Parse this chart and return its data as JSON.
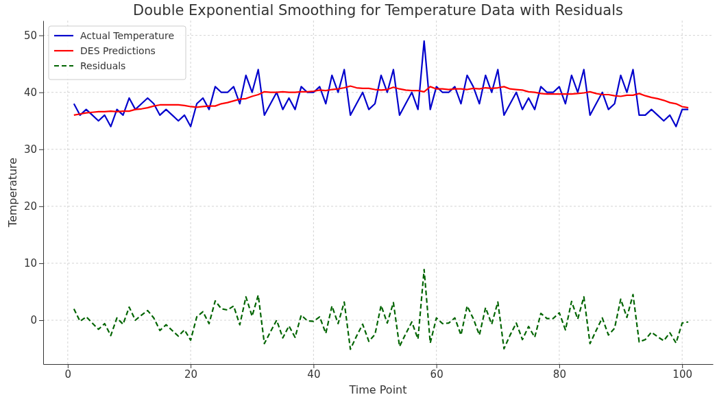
{
  "chart_data": {
    "type": "line",
    "title": "Double Exponential Smoothing for Temperature Data with Residuals",
    "xlabel": "Time Point",
    "ylabel": "Temperature",
    "x": [
      1,
      2,
      3,
      4,
      5,
      6,
      7,
      8,
      9,
      10,
      11,
      12,
      13,
      14,
      15,
      16,
      17,
      18,
      19,
      20,
      21,
      22,
      23,
      24,
      25,
      26,
      27,
      28,
      29,
      30,
      31,
      32,
      33,
      34,
      35,
      36,
      37,
      38,
      39,
      40,
      41,
      42,
      43,
      44,
      45,
      46,
      47,
      48,
      49,
      50,
      51,
      52,
      53,
      54,
      55,
      56,
      57,
      58,
      59,
      60,
      61,
      62,
      63,
      64,
      65,
      66,
      67,
      68,
      69,
      70,
      71,
      72,
      73,
      74,
      75,
      76,
      77,
      78,
      79,
      80,
      81,
      82,
      83,
      84,
      85,
      86,
      87,
      88,
      89,
      90,
      91,
      92,
      93,
      94,
      95,
      96,
      97,
      98,
      99,
      100,
      101
    ],
    "xlim": [
      -4,
      105
    ],
    "ylim": [
      -7.7,
      52.6
    ],
    "xticks": [
      0,
      20,
      40,
      60,
      80,
      100
    ],
    "yticks": [
      0,
      10,
      20,
      30,
      40,
      50
    ],
    "grid": true,
    "legend": "top left",
    "series": [
      {
        "name": "Actual Temperature",
        "color": "#0000cc",
        "line_style": "solid",
        "values": [
          38,
          36,
          37,
          36,
          35,
          36,
          34,
          37,
          36,
          39,
          37,
          38,
          39,
          38,
          36,
          37,
          36,
          35,
          36,
          34,
          38,
          39,
          37,
          41,
          40,
          40,
          41,
          38,
          43,
          40,
          44,
          36,
          38,
          40,
          37,
          39,
          37,
          41,
          40,
          40,
          41,
          38,
          43,
          40,
          44,
          36,
          38,
          40,
          37,
          38,
          43,
          40,
          44,
          36,
          38,
          40,
          37,
          49,
          37,
          41,
          40,
          40,
          41,
          38,
          43,
          41,
          38,
          43,
          40,
          44,
          36,
          38,
          40,
          37,
          39,
          37,
          41,
          40,
          40,
          41,
          38,
          43,
          40,
          44,
          36,
          38,
          40,
          37,
          38,
          43,
          40,
          44,
          36,
          36,
          37,
          36,
          35,
          36,
          34,
          37,
          37
        ]
      },
      {
        "name": "DES Predictions",
        "color": "#ff0000",
        "line_style": "solid",
        "values": [
          36.0,
          36.2,
          36.4,
          36.5,
          36.6,
          36.6,
          36.7,
          36.6,
          36.7,
          36.7,
          37.0,
          37.1,
          37.3,
          37.6,
          37.8,
          37.8,
          37.8,
          37.8,
          37.7,
          37.5,
          37.4,
          37.5,
          37.6,
          37.6,
          38.0,
          38.2,
          38.5,
          38.8,
          38.9,
          39.3,
          39.6,
          40.1,
          40.0,
          40.0,
          40.1,
          40.0,
          40.0,
          40.1,
          40.1,
          40.2,
          40.4,
          40.3,
          40.5,
          40.6,
          40.8,
          41.1,
          40.8,
          40.7,
          40.7,
          40.5,
          40.4,
          40.5,
          40.9,
          40.6,
          40.4,
          40.3,
          40.3,
          40.1,
          41.0,
          40.6,
          40.6,
          40.5,
          40.6,
          40.6,
          40.5,
          40.7,
          40.6,
          40.8,
          40.7,
          40.8,
          41.0,
          40.6,
          40.5,
          40.4,
          40.1,
          40.0,
          39.8,
          39.7,
          39.7,
          39.7,
          39.7,
          39.7,
          39.8,
          39.9,
          40.1,
          39.8,
          39.6,
          39.6,
          39.4,
          39.3,
          39.5,
          39.5,
          39.8,
          39.4,
          39.1,
          38.9,
          38.6,
          38.2,
          38.0,
          37.5,
          37.3
        ]
      },
      {
        "name": "Residuals",
        "color": "#006400",
        "line_style": "dashed",
        "values": [
          2.0,
          -0.2,
          0.6,
          -0.5,
          -1.6,
          -0.6,
          -2.7,
          0.4,
          -0.7,
          2.3,
          0.0,
          0.9,
          1.7,
          0.4,
          -1.8,
          -0.8,
          -1.8,
          -2.8,
          -1.7,
          -3.5,
          0.6,
          1.5,
          -0.6,
          3.4,
          2.0,
          1.8,
          2.5,
          -0.8,
          4.1,
          0.7,
          4.4,
          -4.1,
          -2.0,
          0.0,
          -3.1,
          -1.0,
          -3.0,
          0.9,
          -0.1,
          -0.2,
          0.6,
          -2.3,
          2.5,
          -0.6,
          3.2,
          -5.1,
          -2.8,
          -0.7,
          -3.7,
          -2.5,
          2.6,
          -0.5,
          3.1,
          -4.6,
          -2.4,
          -0.3,
          -3.3,
          8.9,
          -4.0,
          0.4,
          -0.6,
          -0.5,
          0.4,
          -2.6,
          2.5,
          0.3,
          -2.6,
          2.2,
          -0.7,
          3.2,
          -5.0,
          -2.6,
          -0.5,
          -3.4,
          -1.1,
          -3.0,
          1.2,
          0.3,
          0.3,
          1.3,
          -1.7,
          3.3,
          0.2,
          4.1,
          -4.1,
          -1.8,
          0.4,
          -2.6,
          -1.4,
          3.7,
          0.5,
          4.5,
          -3.8,
          -3.4,
          -2.1,
          -2.9,
          -3.6,
          -2.2,
          -4.0,
          -0.5,
          -0.3
        ]
      }
    ]
  }
}
